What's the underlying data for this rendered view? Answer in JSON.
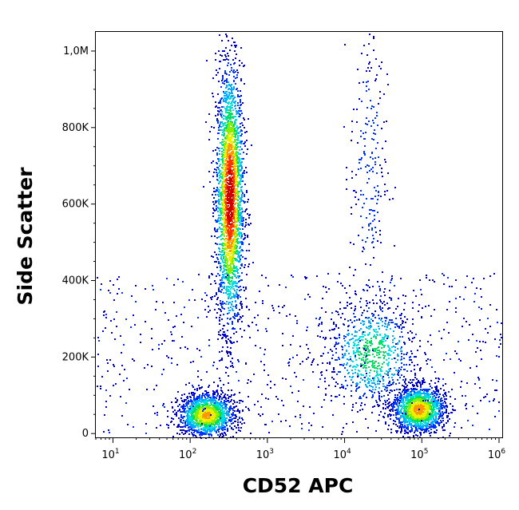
{
  "chart_data": {
    "type": "scatter",
    "style": "flow-cytometry density dot plot (pseudocolor)",
    "xlabel": "CD52 APC",
    "ylabel": "Side Scatter",
    "x_scale": "log",
    "xlim": [
      6,
      1100000
    ],
    "ylim": [
      -10000,
      1050000
    ],
    "x_ticks": [
      {
        "value": 10,
        "base": "10",
        "exp": "1"
      },
      {
        "value": 100,
        "base": "10",
        "exp": "2"
      },
      {
        "value": 1000,
        "base": "10",
        "exp": "3"
      },
      {
        "value": 10000,
        "base": "10",
        "exp": "4"
      },
      {
        "value": 100000,
        "base": "10",
        "exp": "5"
      },
      {
        "value": 1000000,
        "base": "10",
        "exp": "6"
      }
    ],
    "y_ticks": [
      {
        "value": 0,
        "label": "0"
      },
      {
        "value": 200000,
        "label": "200K"
      },
      {
        "value": 400000,
        "label": "400K"
      },
      {
        "value": 600000,
        "label": "600K"
      },
      {
        "value": 800000,
        "label": "800K"
      },
      {
        "value": 1000000,
        "label": "1,0M"
      }
    ],
    "populations": [
      {
        "x_center": 320,
        "y_center": 620000,
        "x_spread_log": 0.09,
        "y_spread": 170000,
        "relative_density": 1.0
      },
      {
        "x_center": 160,
        "y_center": 50000,
        "x_spread_log": 0.18,
        "y_spread": 28000,
        "relative_density": 0.55
      },
      {
        "x_center": 90000,
        "y_center": 65000,
        "x_spread_log": 0.17,
        "y_spread": 30000,
        "relative_density": 0.6
      },
      {
        "x_center": 22000,
        "y_center": 210000,
        "x_spread_log": 0.28,
        "y_spread": 70000,
        "relative_density": 0.25
      },
      {
        "x_center": 20000,
        "y_center": 700000,
        "x_spread_log": 0.12,
        "y_spread": 200000,
        "relative_density": 0.04
      }
    ],
    "colormap": [
      "#0000cc",
      "#0033ff",
      "#00aaff",
      "#00e0e0",
      "#00e060",
      "#88ee00",
      "#eeee00",
      "#ff9900",
      "#ff3300",
      "#cc0000"
    ],
    "grid": false,
    "legend": "none"
  }
}
